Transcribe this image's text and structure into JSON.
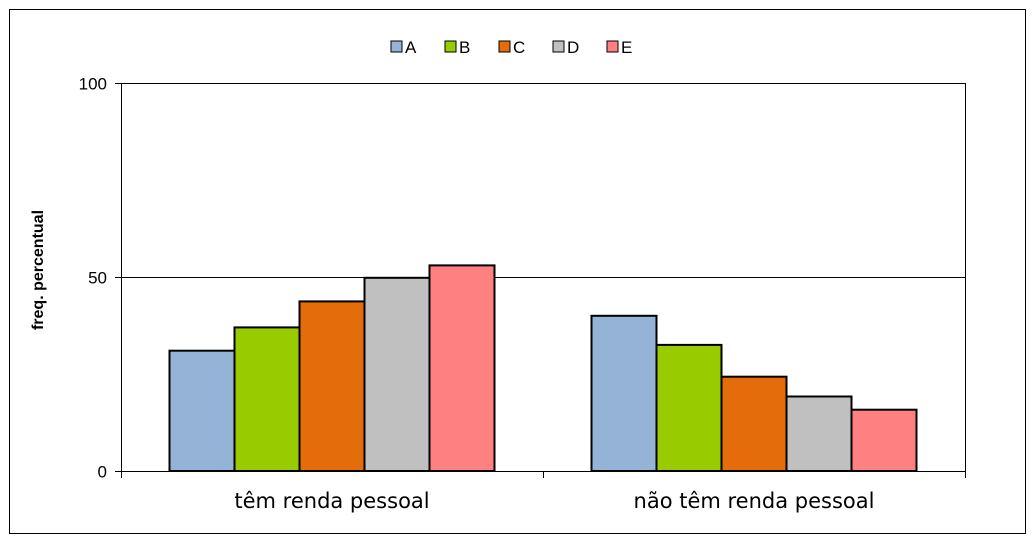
{
  "chart_data": {
    "type": "bar",
    "ylabel": "freq. percentual",
    "xlabel": "",
    "ylim": [
      0,
      100
    ],
    "yticks": [
      0,
      50,
      100
    ],
    "grid": "horizontal at 50 and 100",
    "legend_position": "top-center",
    "categories": [
      "têm renda pessoal",
      "não têm renda pessoal"
    ],
    "series": [
      {
        "name": "A",
        "color": "#95B3D7",
        "values": [
          31,
          40
        ]
      },
      {
        "name": "B",
        "color": "#99CC00",
        "values": [
          37,
          32.5
        ]
      },
      {
        "name": "C",
        "color": "#E46C0A",
        "values": [
          43.7,
          24.3
        ]
      },
      {
        "name": "D",
        "color": "#C0C0C0",
        "values": [
          49.8,
          19.2
        ]
      },
      {
        "name": "E",
        "color": "#FF8080",
        "values": [
          53,
          15.8
        ]
      }
    ]
  }
}
